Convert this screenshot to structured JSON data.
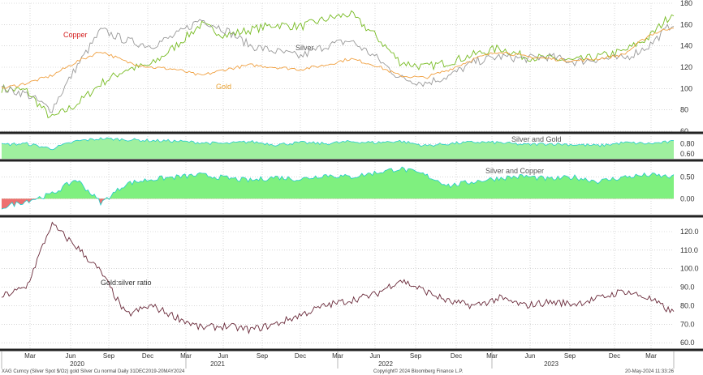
{
  "chart_data": [
    {
      "type": "line",
      "title": "",
      "ylim": [
        60,
        180
      ],
      "yticks": [
        60,
        80,
        100,
        120,
        140,
        160,
        180
      ],
      "grid": true,
      "annotations": [
        {
          "text": "Copper",
          "color": "#d42020"
        },
        {
          "text": "Silver",
          "color": "#555555"
        },
        {
          "text": "Gold",
          "color": "#e8a030"
        }
      ],
      "x_dates": [
        "2020-01",
        "2020-03",
        "2020-04",
        "2020-06",
        "2020-08",
        "2020-09",
        "2020-11",
        "2021-01",
        "2021-03",
        "2021-05",
        "2021-07",
        "2021-09",
        "2021-11",
        "2022-01",
        "2022-03",
        "2022-05",
        "2022-07",
        "2022-09",
        "2022-11",
        "2023-01",
        "2023-03",
        "2023-05",
        "2023-07",
        "2023-09",
        "2023-11",
        "2024-01",
        "2024-03",
        "2024-05"
      ],
      "series": [
        {
          "name": "Copper",
          "color": "#77bb22",
          "values": [
            100,
            98,
            72,
            85,
            105,
            118,
            122,
            140,
            160,
            150,
            155,
            160,
            158,
            165,
            170,
            150,
            125,
            120,
            125,
            132,
            138,
            130,
            128,
            126,
            130,
            135,
            148,
            172
          ]
        },
        {
          "name": "Silver",
          "color": "#999999",
          "values": [
            100,
            95,
            80,
            120,
            155,
            145,
            140,
            150,
            165,
            155,
            140,
            135,
            130,
            140,
            145,
            130,
            110,
            105,
            112,
            125,
            130,
            128,
            130,
            125,
            128,
            128,
            140,
            162
          ]
        },
        {
          "name": "Gold",
          "color": "#f0a040",
          "values": [
            100,
            105,
            112,
            125,
            135,
            125,
            120,
            118,
            112,
            118,
            122,
            120,
            118,
            122,
            128,
            122,
            112,
            110,
            118,
            128,
            135,
            130,
            128,
            126,
            128,
            132,
            150,
            158
          ]
        }
      ]
    },
    {
      "type": "area",
      "label": "Silver and Gold",
      "ylim": [
        0.5,
        0.95
      ],
      "yticks": [
        0.6,
        0.8
      ],
      "color": "#9ff09f",
      "edge": "#22cccc",
      "values": [
        0.78,
        0.8,
        0.7,
        0.85,
        0.9,
        0.88,
        0.86,
        0.85,
        0.82,
        0.8,
        0.84,
        0.78,
        0.82,
        0.8,
        0.84,
        0.82,
        0.85,
        0.76,
        0.8,
        0.83,
        0.82,
        0.78,
        0.8,
        0.78,
        0.76,
        0.82,
        0.8,
        0.84
      ]
    },
    {
      "type": "area",
      "label": "Silver and Copper",
      "ylim": [
        -0.35,
        0.85
      ],
      "yticks": [
        0.0,
        0.5
      ],
      "color": "#7ff07f",
      "neg_color": "#ee7070",
      "edge": "#22cccc",
      "values": [
        -0.2,
        -0.05,
        0.1,
        0.45,
        -0.1,
        0.35,
        0.45,
        0.5,
        0.55,
        0.48,
        0.42,
        0.5,
        0.45,
        0.55,
        0.5,
        0.6,
        0.7,
        0.55,
        0.3,
        0.4,
        0.48,
        0.52,
        0.45,
        0.5,
        0.4,
        0.5,
        0.55,
        0.5
      ]
    },
    {
      "type": "line",
      "label": "Gold:silver ratio",
      "color": "#6a2a3a",
      "ylim": [
        57,
        127
      ],
      "yticks": [
        60.0,
        70.0,
        80.0,
        90.0,
        100.0,
        110.0,
        120.0
      ],
      "values": [
        85,
        90,
        124,
        112,
        98,
        75,
        80,
        74,
        68,
        69,
        67,
        70,
        75,
        80,
        83,
        86,
        94,
        88,
        82,
        80,
        84,
        80,
        82,
        81,
        84,
        88,
        84,
        76
      ]
    }
  ],
  "x_axis": {
    "months": [
      "Mar",
      "Jun",
      "Sep",
      "Dec",
      "Mar",
      "Jun",
      "Sep",
      "Dec",
      "Mar",
      "Jun",
      "Sep",
      "Dec",
      "Mar",
      "Jun",
      "Sep",
      "Dec",
      "Mar"
    ],
    "years": [
      "2020",
      "2021",
      "2022",
      "2023"
    ]
  },
  "footer": {
    "left": "XAG Curncy (Silver Spot  $/Oz) gold Silver Cu normal  Daily 31DEC2019-20MAY2024",
    "center": "Copyright© 2024 Bloomberg Finance L.P.",
    "right": "20-May-2024 11:33:26"
  },
  "colors": {
    "grid": "#bdbdbd",
    "border": "#222222",
    "background": "#ffffff"
  }
}
